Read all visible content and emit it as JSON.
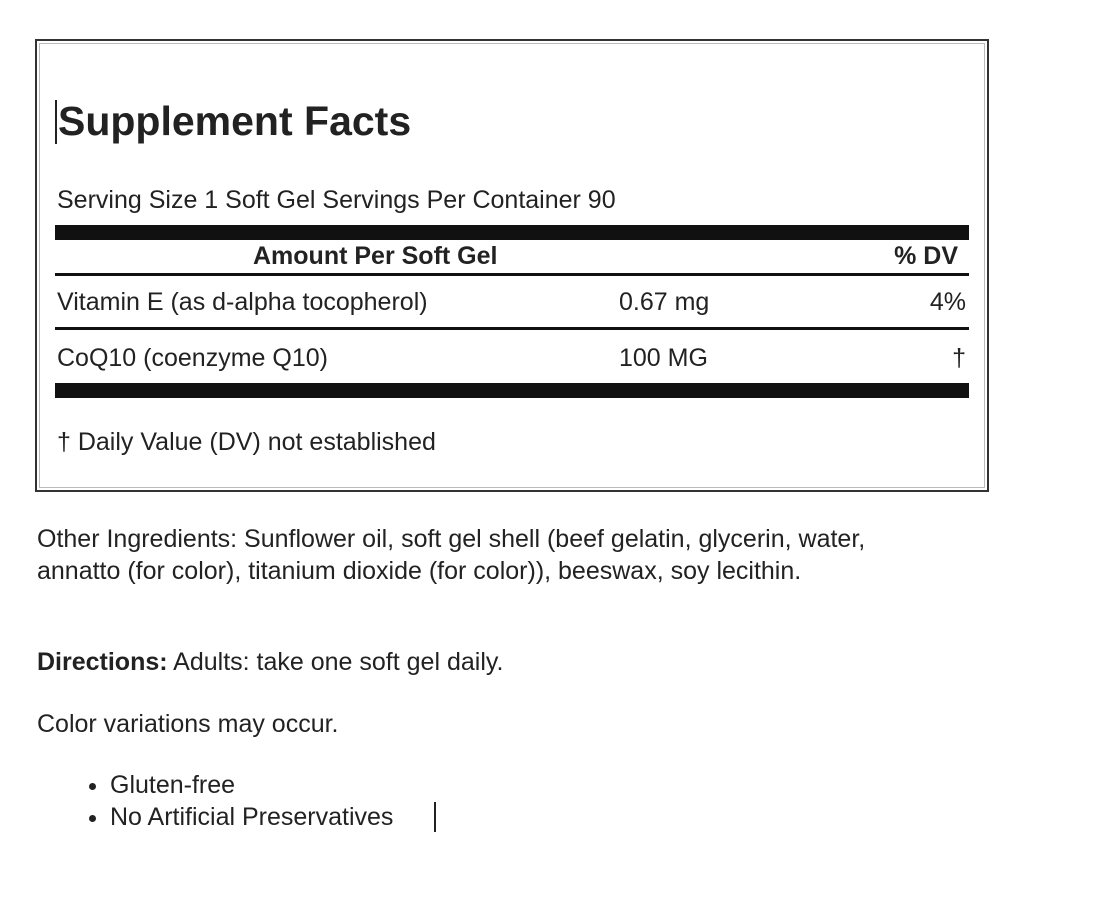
{
  "panel": {
    "title": "Supplement Facts",
    "serving": "Serving Size 1 Soft Gel Servings Per Container 90",
    "header": {
      "amount": "Amount Per Soft Gel",
      "dv": "% DV"
    },
    "rows": [
      [
        "Vitamin E (as d-alpha tocopherol)",
        "0.67 mg",
        "4%"
      ],
      [
        "CoQ10 (coenzyme Q10)",
        "100 MG",
        "†"
      ]
    ],
    "footnote": "† Daily Value (DV) not established"
  },
  "other_ingredients": "Other Ingredients: Sunflower oil, soft gel shell (beef gelatin, glycerin, water, annatto (for color), titanium dioxide (for color)), beeswax, soy lecithin.",
  "directions": {
    "label": "Directions:",
    "text": "Adults: take one soft gel daily."
  },
  "note": "Color variations may occur.",
  "features": [
    "Gluten-free",
    "No Artificial Preservatives"
  ]
}
